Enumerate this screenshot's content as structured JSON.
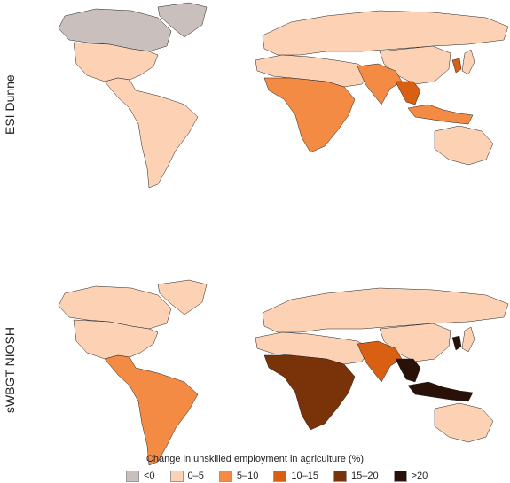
{
  "panels": [
    {
      "label": "ESI Dunne",
      "regions": {
        "canada": "<0",
        "usa": "0–5",
        "latam": "0–5",
        "europe_russia": "0–5",
        "mena": "0–5",
        "sub_saharan_africa": "5–10",
        "south_asia": "5–10",
        "mainland_se_asia": "10–15",
        "maritime_se_asia": "5–10",
        "china": "0–5",
        "japan": "0–5",
        "korea": "10–15",
        "australia": "0–5",
        "greenland": "<0"
      }
    },
    {
      "label": "sWBGT NIOSH",
      "regions": {
        "canada": "0–5",
        "usa": "0–5",
        "latam": "5–10",
        "europe_russia": "0–5",
        "mena": "0–5",
        "sub_saharan_africa": "15–20",
        "south_asia": "10–15",
        "mainland_se_asia": ">20",
        "maritime_se_asia": ">20",
        "china": "0–5",
        "japan": "0–5",
        "korea": ">20",
        "australia": "0–5",
        "greenland": "0–5"
      }
    }
  ],
  "legend": {
    "title": "Change in unskilled employment in agriculture (%)",
    "classes": [
      {
        "label": "<0",
        "color": "#c9c0bd"
      },
      {
        "label": "0–5",
        "color": "#fdd1b4"
      },
      {
        "label": "5–10",
        "color": "#f48b45"
      },
      {
        "label": "10–15",
        "color": "#d95f13"
      },
      {
        "label": "15–20",
        "color": "#7a3208"
      },
      {
        "label": ">20",
        "color": "#2a1108"
      }
    ]
  }
}
